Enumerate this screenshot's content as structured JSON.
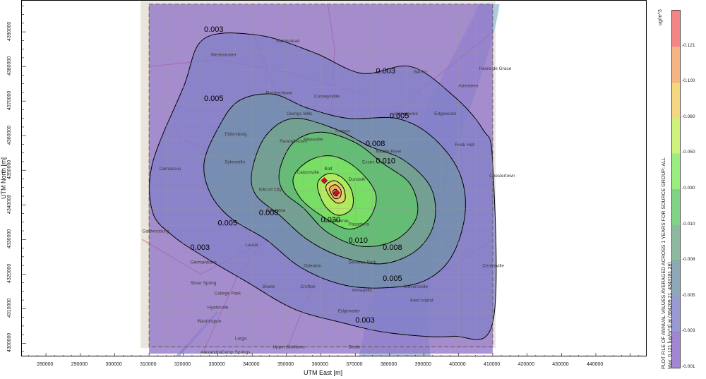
{
  "chart_data": {
    "type": "contour-map",
    "title": "PLOT FILE OF ANNUAL VALUES AVERAGED ACROSS 1 YEARS FOR SOURCE GROUP: ALL",
    "xlabel": "UTM East [m]",
    "ylabel": "UTM North [m]",
    "xlim": [
      273000,
      455000
    ],
    "ylim": [
      4296000,
      4399000
    ],
    "x_ticks": [
      "280000",
      "290000",
      "300000",
      "310000",
      "320000",
      "330000",
      "340000",
      "350000",
      "360000",
      "370000",
      "380000",
      "390000",
      "400000",
      "410000",
      "420000",
      "430000",
      "440000"
    ],
    "y_ticks": [
      "4300000",
      "4310000",
      "4320000",
      "4330000",
      "4340000",
      "4350000",
      "4360000",
      "4370000",
      "4380000",
      "4390000"
    ],
    "grid_extent": {
      "x": [
        310000,
        410000
      ],
      "y": [
        4299000,
        4398000
      ]
    },
    "max_value": "0.121",
    "max_location": "(364209.21, 4343181.28)",
    "max_caption": "Max: 0.121 [ug/m^3] at (364209.21, 4343181.28)",
    "units": "ug/m^3",
    "colorbar_ticks": [
      "0.001",
      "0.003",
      "0.005",
      "0.008",
      "0.010",
      "0.030",
      "0.050",
      "0.080",
      "0.100",
      "0.121"
    ],
    "contour_levels": [
      "0.003",
      "0.005",
      "0.008",
      "0.010",
      "0.030",
      "0.050",
      "0.080",
      "0.100",
      "0.121"
    ],
    "contour_labels": [
      {
        "text": "0.003",
        "x": 326000,
        "y": 4390000
      },
      {
        "text": "0.003",
        "x": 376000,
        "y": 4378000
      },
      {
        "text": "0.003",
        "x": 322000,
        "y": 4327000
      },
      {
        "text": "0.003",
        "x": 370000,
        "y": 4306000
      },
      {
        "text": "0.005",
        "x": 326000,
        "y": 4370000
      },
      {
        "text": "0.005",
        "x": 380000,
        "y": 4365000
      },
      {
        "text": "0.005",
        "x": 330000,
        "y": 4334000
      },
      {
        "text": "0.005",
        "x": 378000,
        "y": 4318000
      },
      {
        "text": "0.008",
        "x": 373000,
        "y": 4357000
      },
      {
        "text": "0.008",
        "x": 342000,
        "y": 4337000
      },
      {
        "text": "0.008",
        "x": 378000,
        "y": 4327000
      },
      {
        "text": "0.010",
        "x": 376000,
        "y": 4352000
      },
      {
        "text": "0.010",
        "x": 368000,
        "y": 4329000
      },
      {
        "text": "0.030",
        "x": 360000,
        "y": 4335000
      }
    ],
    "sources": [
      {
        "x": 361000,
        "y": 4347000
      },
      {
        "x": 364600,
        "y": 4343500
      }
    ],
    "map_places": [
      {
        "text": "Washington",
        "x": 324000,
        "y": 4306000
      },
      {
        "text": "Annapolis",
        "x": 369000,
        "y": 4315000
      },
      {
        "text": "Laurel",
        "x": 338000,
        "y": 4328000
      },
      {
        "text": "Gaithersburg",
        "x": 308000,
        "y": 4332000
      },
      {
        "text": "Alexandria",
        "x": 325000,
        "y": 4297000
      },
      {
        "text": "Balt",
        "x": 361000,
        "y": 4350000
      },
      {
        "text": "Columbia",
        "x": 344000,
        "y": 4338000
      },
      {
        "text": "Towson",
        "x": 364000,
        "y": 4361000
      },
      {
        "text": "Bel Air",
        "x": 387000,
        "y": 4378000
      },
      {
        "text": "Eldersburg",
        "x": 332000,
        "y": 4360000
      },
      {
        "text": "Hampstead",
        "x": 347000,
        "y": 4387000
      },
      {
        "text": "Westminster",
        "x": 328000,
        "y": 4383000
      },
      {
        "text": "Cockeysville",
        "x": 358000,
        "y": 4371000
      },
      {
        "text": "Glen Burnie",
        "x": 361000,
        "y": 4335000
      },
      {
        "text": "Damascus",
        "x": 313000,
        "y": 4350000
      },
      {
        "text": "Germantown",
        "x": 322000,
        "y": 4323000
      },
      {
        "text": "Silver Spring",
        "x": 322000,
        "y": 4317000
      },
      {
        "text": "Bowie",
        "x": 343000,
        "y": 4316000
      },
      {
        "text": "Havre de Grace",
        "x": 406000,
        "y": 4379000
      },
      {
        "text": "Aberdeen",
        "x": 400000,
        "y": 4374000
      },
      {
        "text": "Edgewood",
        "x": 393000,
        "y": 4366000
      },
      {
        "text": "Pasadena",
        "x": 368000,
        "y": 4334000
      },
      {
        "text": "Edgewater",
        "x": 365000,
        "y": 4309000
      },
      {
        "text": "Centreville",
        "x": 407000,
        "y": 4322000
      },
      {
        "text": "Rock Hall",
        "x": 399000,
        "y": 4357000
      },
      {
        "text": "Chestertown",
        "x": 409000,
        "y": 4348000
      },
      {
        "text": "Largo",
        "x": 335000,
        "y": 4301000
      },
      {
        "text": "Upper Marlboro",
        "x": 346000,
        "y": 4298500
      },
      {
        "text": "Camp Springs",
        "x": 331000,
        "y": 4297000
      },
      {
        "text": "Hyattsville",
        "x": 327000,
        "y": 4310000
      },
      {
        "text": "College Park",
        "x": 329000,
        "y": 4314000
      },
      {
        "text": "Ellicott City",
        "x": 342000,
        "y": 4344000
      },
      {
        "text": "Catonsville",
        "x": 353000,
        "y": 4349000
      },
      {
        "text": "Sykesville",
        "x": 332000,
        "y": 4352000
      },
      {
        "text": "Deale",
        "x": 368000,
        "y": 4298500
      },
      {
        "text": "Stevensville",
        "x": 384000,
        "y": 4316000
      },
      {
        "text": "Kent Island",
        "x": 386000,
        "y": 4312000
      },
      {
        "text": "Joppatowne",
        "x": 381000,
        "y": 4366000
      },
      {
        "text": "Reisterstown",
        "x": 344000,
        "y": 4372000
      },
      {
        "text": "Owings Mills",
        "x": 350000,
        "y": 4366000
      },
      {
        "text": "Randallstown",
        "x": 348000,
        "y": 4358000
      },
      {
        "text": "Pikesville",
        "x": 355000,
        "y": 4358500
      },
      {
        "text": "Middle River",
        "x": 376000,
        "y": 4355000
      },
      {
        "text": "Essex",
        "x": 372000,
        "y": 4352000
      },
      {
        "text": "Dundalk",
        "x": 368000,
        "y": 4347000
      },
      {
        "text": "Severna Park",
        "x": 368000,
        "y": 4323000
      },
      {
        "text": "Odenton",
        "x": 355000,
        "y": 4322000
      },
      {
        "text": "Crofton",
        "x": 354000,
        "y": 4316000
      }
    ]
  },
  "colors": {
    "colormap": [
      "#8a69c8",
      "#7f7fc9",
      "#7092a8",
      "#71a886",
      "#5fc869",
      "#81ea60",
      "#c5ee5d",
      "#f3cc62",
      "#f4a164",
      "#f06669"
    ],
    "contour_line": "#000000",
    "source_marker": "#c8102e"
  }
}
